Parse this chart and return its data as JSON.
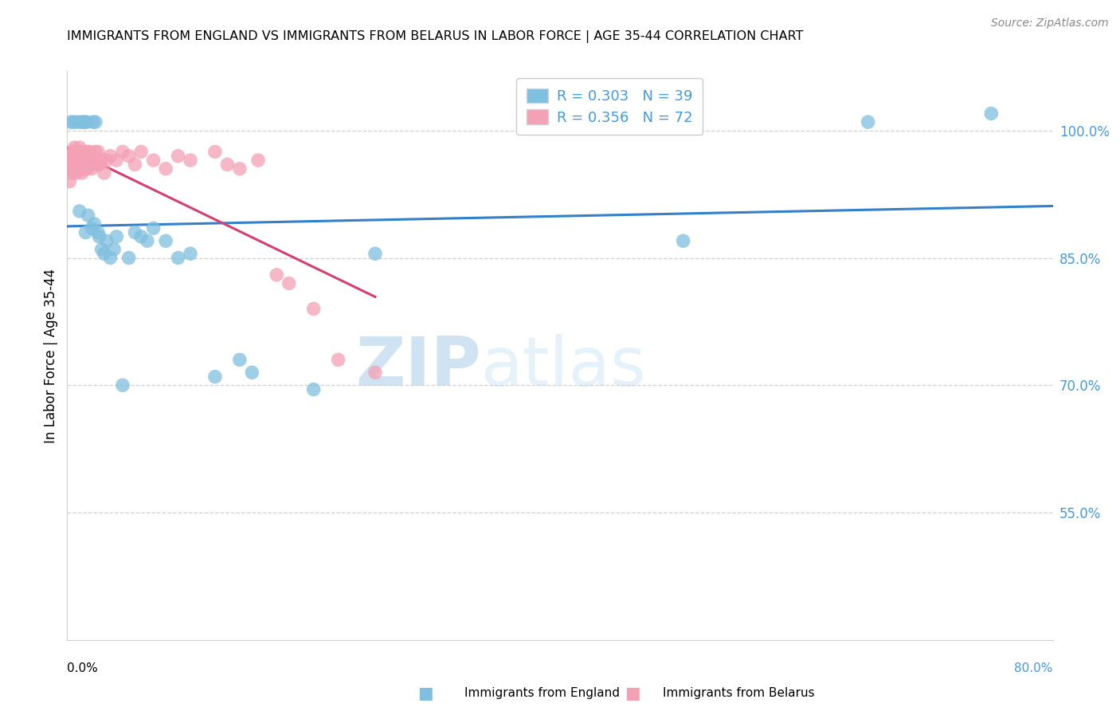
{
  "title": "IMMIGRANTS FROM ENGLAND VS IMMIGRANTS FROM BELARUS IN LABOR FORCE | AGE 35-44 CORRELATION CHART",
  "source": "Source: ZipAtlas.com",
  "ylabel": "In Labor Force | Age 35-44",
  "right_ytick_labels": [
    "100.0%",
    "85.0%",
    "70.0%",
    "55.0%"
  ],
  "right_ytick_values": [
    100.0,
    85.0,
    70.0,
    55.0
  ],
  "xlim": [
    0.0,
    80.0
  ],
  "ylim": [
    40.0,
    107.0
  ],
  "england_R": 0.303,
  "england_N": 39,
  "belarus_R": 0.356,
  "belarus_N": 72,
  "england_color": "#7fbfdf",
  "belarus_color": "#f4a0b5",
  "england_line_color": "#3380c8",
  "belarus_line_color": "#d44070",
  "legend_label_england": "Immigrants from England",
  "legend_label_belarus": "Immigrants from Belarus",
  "watermark_zip": "ZIP",
  "watermark_atlas": "atlas",
  "england_x": [
    0.3,
    0.5,
    0.8,
    1.0,
    1.1,
    1.3,
    1.4,
    1.5,
    1.6,
    1.7,
    2.0,
    2.1,
    2.2,
    2.3,
    2.5,
    2.6,
    2.8,
    3.0,
    3.2,
    3.5,
    3.8,
    4.0,
    4.5,
    5.0,
    5.5,
    6.0,
    6.5,
    7.0,
    8.0,
    9.0,
    10.0,
    12.0,
    14.0,
    15.0,
    20.0,
    25.0,
    50.0,
    65.0,
    75.0
  ],
  "england_y": [
    101.0,
    101.0,
    101.0,
    90.5,
    101.0,
    101.0,
    101.0,
    88.0,
    101.0,
    90.0,
    88.5,
    101.0,
    89.0,
    101.0,
    88.0,
    87.5,
    86.0,
    85.5,
    87.0,
    85.0,
    86.0,
    87.5,
    70.0,
    85.0,
    88.0,
    87.5,
    87.0,
    88.5,
    87.0,
    85.0,
    85.5,
    71.0,
    73.0,
    71.5,
    69.5,
    85.5,
    87.0,
    101.0,
    102.0
  ],
  "belarus_x": [
    0.2,
    0.25,
    0.3,
    0.35,
    0.4,
    0.4,
    0.45,
    0.5,
    0.5,
    0.55,
    0.6,
    0.6,
    0.6,
    0.65,
    0.7,
    0.7,
    0.75,
    0.8,
    0.8,
    0.85,
    0.9,
    0.9,
    0.95,
    1.0,
    1.0,
    1.05,
    1.1,
    1.1,
    1.15,
    1.2,
    1.25,
    1.3,
    1.35,
    1.4,
    1.45,
    1.5,
    1.55,
    1.6,
    1.65,
    1.7,
    1.75,
    1.8,
    1.9,
    2.0,
    2.1,
    2.2,
    2.3,
    2.4,
    2.5,
    2.6,
    2.8,
    3.0,
    3.2,
    3.5,
    4.0,
    4.5,
    5.0,
    5.5,
    6.0,
    7.0,
    8.0,
    9.0,
    10.0,
    12.0,
    13.0,
    14.0,
    15.5,
    17.0,
    18.0,
    20.0,
    22.0,
    25.0
  ],
  "belarus_y": [
    94.0,
    95.5,
    96.0,
    97.0,
    96.5,
    95.0,
    97.5,
    96.0,
    97.0,
    95.5,
    96.0,
    97.0,
    98.0,
    97.5,
    96.0,
    97.5,
    95.0,
    96.5,
    97.5,
    96.0,
    97.0,
    95.5,
    97.0,
    96.5,
    98.0,
    96.0,
    95.5,
    97.5,
    96.5,
    95.0,
    96.5,
    95.5,
    97.0,
    96.5,
    97.5,
    96.0,
    97.0,
    95.5,
    96.5,
    97.5,
    96.0,
    97.5,
    96.0,
    95.5,
    97.0,
    96.5,
    97.5,
    96.0,
    97.5,
    96.0,
    96.5,
    95.0,
    96.5,
    97.0,
    96.5,
    97.5,
    97.0,
    96.0,
    97.5,
    96.5,
    95.5,
    97.0,
    96.5,
    97.5,
    96.0,
    95.5,
    96.5,
    83.0,
    82.0,
    79.0,
    73.0,
    71.5
  ],
  "grid_color": "#d0d0d0",
  "spine_color": "#d0d0d0"
}
